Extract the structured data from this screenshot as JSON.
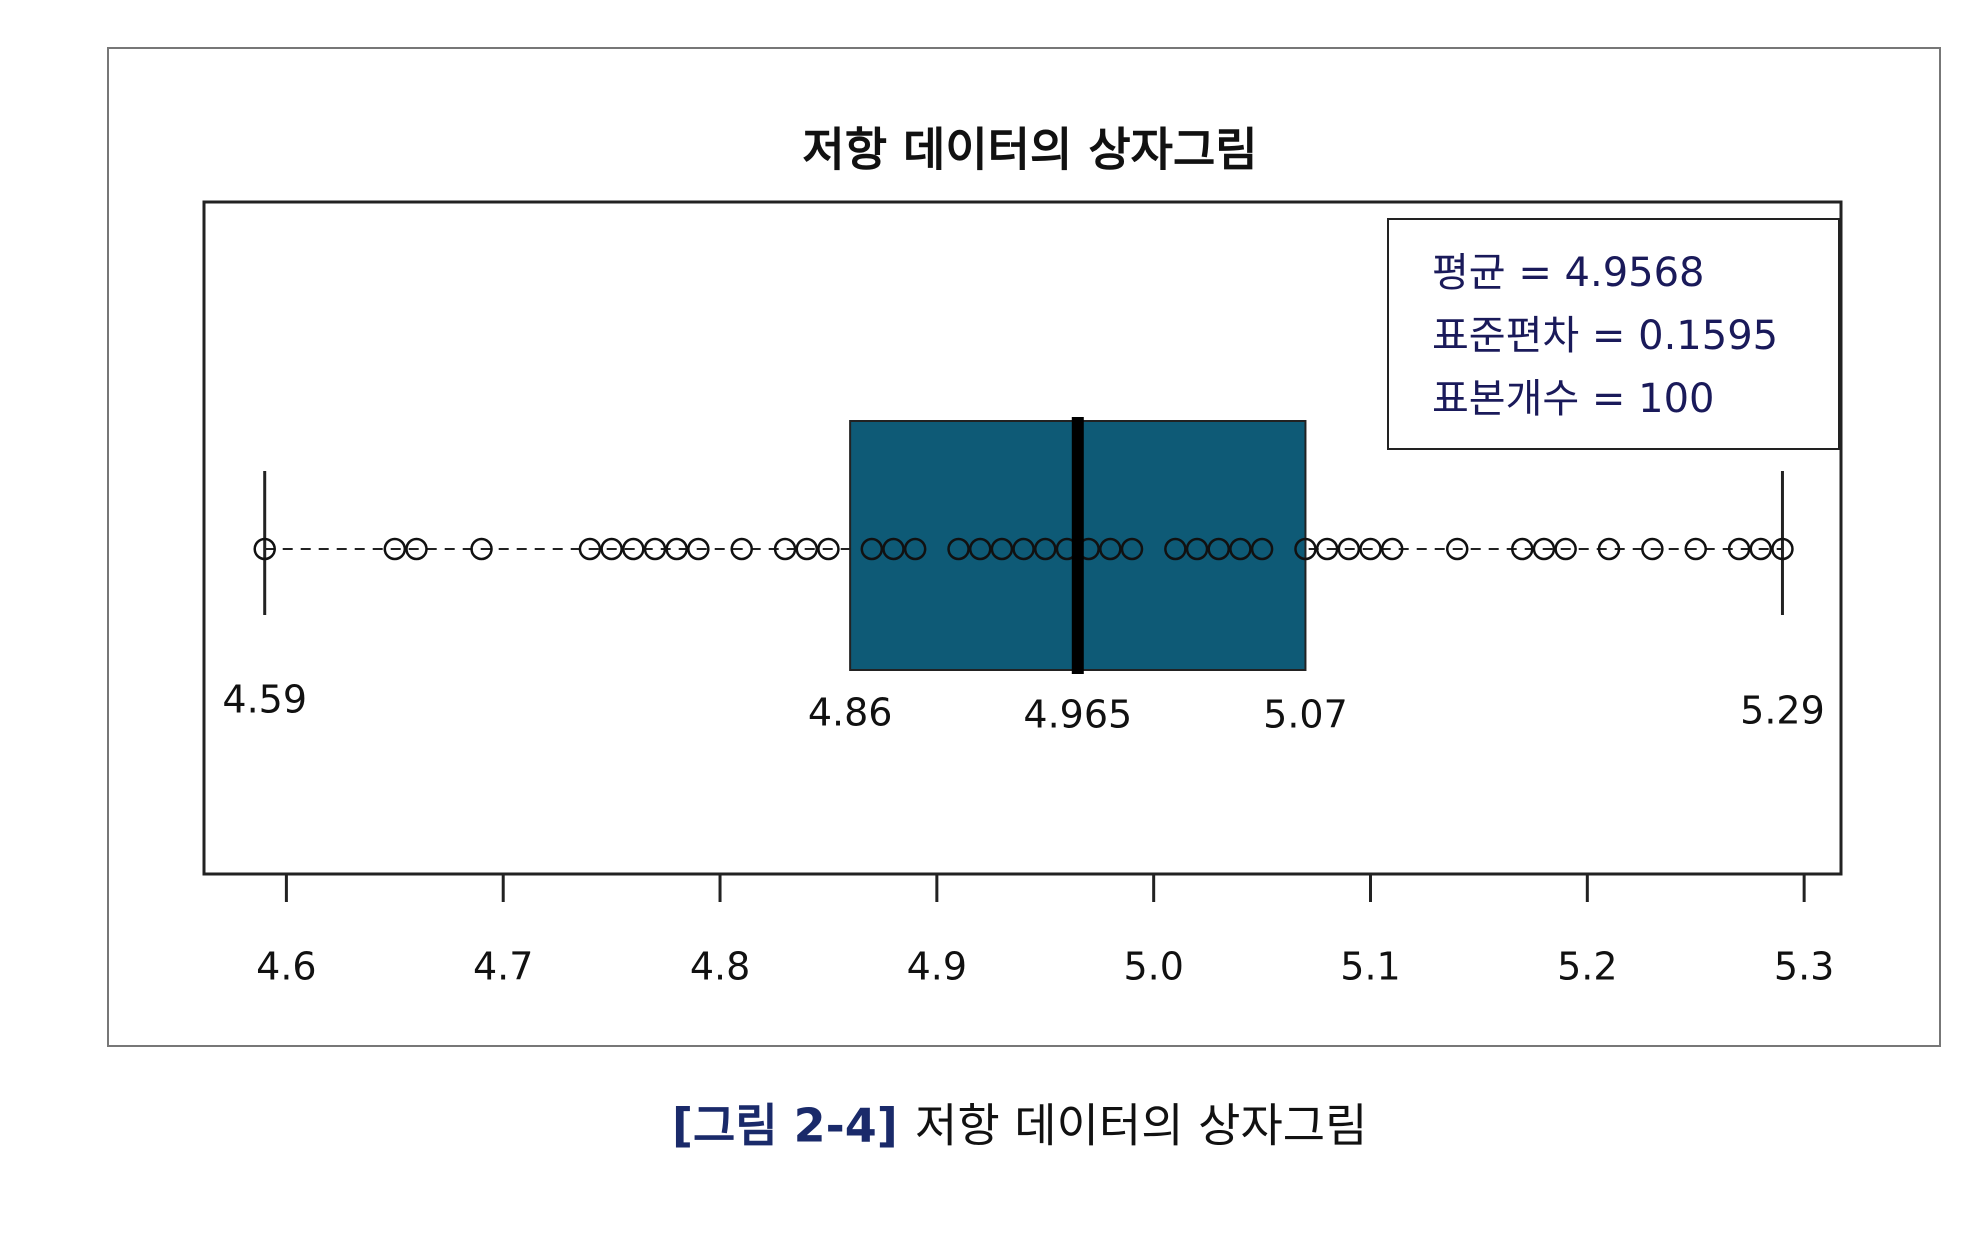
{
  "chart_data": {
    "type": "box",
    "orientation": "horizontal",
    "title": "저항 데이터의 상자그림",
    "whisker_low": 4.59,
    "q1": 4.86,
    "median": 4.965,
    "q3": 5.07,
    "whisker_high": 5.29,
    "points": [
      4.59,
      4.65,
      4.66,
      4.69,
      4.74,
      4.75,
      4.76,
      4.77,
      4.78,
      4.79,
      4.81,
      4.83,
      4.84,
      4.85,
      4.87,
      4.88,
      4.89,
      4.91,
      4.92,
      4.93,
      4.94,
      4.95,
      4.96,
      4.97,
      4.98,
      4.99,
      5.01,
      5.02,
      5.03,
      5.04,
      5.05,
      5.07,
      5.08,
      5.09,
      5.1,
      5.11,
      5.14,
      5.17,
      5.18,
      5.19,
      5.21,
      5.23,
      5.25,
      5.27,
      5.28,
      5.29
    ],
    "color": "#0e5a76",
    "xlim": [
      4.562,
      5.317
    ],
    "xticks": [
      4.6,
      4.7,
      4.8,
      4.9,
      {
        "value": 5,
        "label": "5.0"
      },
      5.1,
      5.2,
      5.3
    ],
    "annotations": [
      "평균 = 4.9568",
      "표준편차 = 0.1595",
      "표본개수 = 100"
    ]
  },
  "caption": {
    "label": "[그림 2-4]",
    "text": "저항 데이터의 상자그림"
  }
}
